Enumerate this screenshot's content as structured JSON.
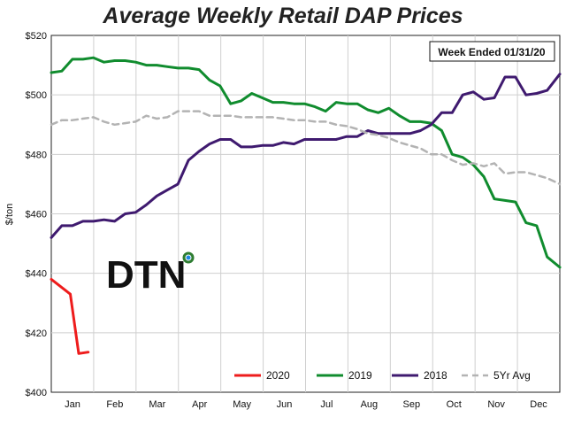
{
  "chart_data": {
    "type": "line",
    "title": "Average Weekly Retail DAP Prices",
    "ylabel": "$/ton",
    "xlabel": "",
    "ylim": [
      400,
      520
    ],
    "xlim": [
      0,
      48.2
    ],
    "y_ticks": [
      "$400",
      "$420",
      "$440",
      "$460",
      "$480",
      "$500",
      "$520"
    ],
    "x_ticks": [
      "Jan",
      "Feb",
      "Mar",
      "Apr",
      "May",
      "Jun",
      "Jul",
      "Aug",
      "Sep",
      "Oct",
      "Nov",
      "Dec"
    ],
    "annotation": "Week Ended 01/31/20",
    "logo_text": "DTN",
    "grid": true,
    "legend_position": "bottom",
    "series": [
      {
        "name": "2020",
        "color": "#ee1c1c",
        "dash": "solid",
        "x": [
          0,
          1.8,
          2.6,
          3.5
        ],
        "values": [
          438,
          433,
          413,
          413.5
        ]
      },
      {
        "name": "2019",
        "color": "#108c2e",
        "dash": "solid",
        "x": [
          0,
          1,
          2,
          3,
          4,
          5,
          6,
          7,
          8,
          9,
          10,
          11,
          12,
          13,
          14,
          15,
          16,
          17,
          18,
          19,
          20,
          21,
          22,
          23,
          24,
          25,
          26,
          27,
          28,
          29,
          30,
          31,
          32,
          33,
          34,
          35,
          36,
          37,
          38,
          39,
          40,
          41,
          42,
          43,
          44,
          45,
          46,
          47,
          48.2
        ],
        "values": [
          507.5,
          508,
          512,
          512,
          512.5,
          511,
          511.5,
          511.5,
          511,
          510,
          510,
          509.5,
          509,
          509,
          508.5,
          505,
          503,
          497,
          498,
          500.5,
          499,
          497.5,
          497.5,
          497,
          497,
          496,
          494.5,
          497.5,
          497,
          497,
          495,
          494,
          495.5,
          493,
          491,
          491,
          490.5,
          488,
          480,
          479,
          476.5,
          472.5,
          465,
          464.5,
          464,
          457,
          456,
          445.5,
          442
        ]
      },
      {
        "name": "2018",
        "color": "#3f1a6f",
        "dash": "solid",
        "x": [
          0,
          1,
          2,
          3,
          4,
          5,
          6,
          7,
          8,
          9,
          10,
          11,
          12,
          13,
          14,
          15,
          16,
          17,
          18,
          19,
          20,
          21,
          22,
          23,
          24,
          25,
          26,
          27,
          28,
          29,
          30,
          31,
          32,
          33,
          34,
          35,
          36,
          37,
          38,
          39,
          40,
          41,
          42,
          43,
          44,
          45,
          46,
          47,
          48.2
        ],
        "values": [
          452,
          456,
          456,
          457.5,
          457.5,
          458,
          457.5,
          460,
          460.5,
          463,
          466,
          468,
          470,
          478,
          481,
          483.5,
          485,
          485,
          482.5,
          482.5,
          483,
          483,
          484,
          483.5,
          485,
          485,
          485,
          485,
          486,
          486,
          488,
          487,
          487,
          487,
          487,
          488,
          490,
          494,
          494,
          500,
          501,
          498.5,
          499,
          506,
          506,
          500,
          500.5,
          501.5,
          507
        ]
      },
      {
        "name": "5Yr Avg",
        "color": "#b3b3b3",
        "dash": "dashed",
        "x": [
          0,
          1,
          2,
          3,
          4,
          5,
          6,
          7,
          8,
          9,
          10,
          11,
          12,
          13,
          14,
          15,
          16,
          17,
          18,
          19,
          20,
          21,
          22,
          23,
          24,
          25,
          26,
          27,
          28,
          29,
          30,
          31,
          32,
          33,
          34,
          35,
          36,
          37,
          38,
          39,
          40,
          41,
          42,
          43,
          44,
          45,
          46,
          47,
          48.2
        ],
        "values": [
          490,
          491.5,
          491.5,
          492,
          492.5,
          491,
          490,
          490.5,
          491,
          493,
          492,
          492.5,
          494.5,
          494.5,
          494.5,
          493,
          493,
          493,
          492.5,
          492.5,
          492.5,
          492.5,
          492,
          491.5,
          491.5,
          491,
          491,
          490,
          489.5,
          488.5,
          487,
          486.5,
          485.5,
          484,
          483,
          482,
          480,
          480,
          478,
          476.5,
          477,
          476,
          477,
          473.5,
          474,
          474,
          473,
          472,
          470
        ]
      }
    ]
  }
}
